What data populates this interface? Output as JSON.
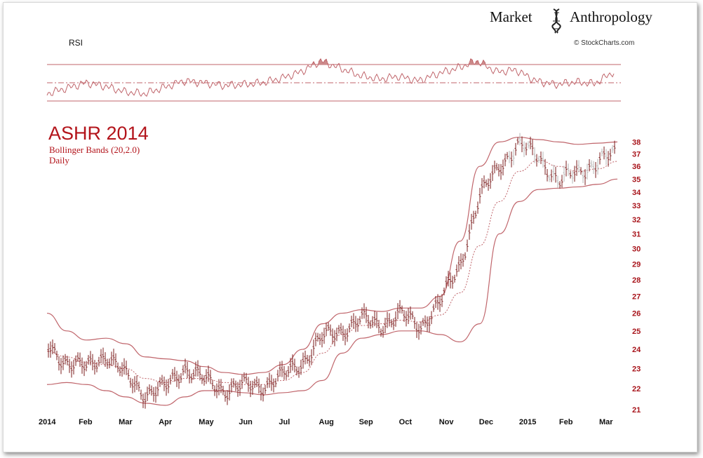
{
  "brand": {
    "left": "Market",
    "right": "Anthropology",
    "credit": "© StockCharts.com"
  },
  "rsi": {
    "label": "RSI"
  },
  "chart_data": {
    "type": "line",
    "title": "ASHR 2014",
    "subtitle": "Bollinger Bands (20,2.0)",
    "interval": "Daily",
    "y_scale": "log",
    "ylim": [
      21,
      38.5
    ],
    "y_ticks": [
      21,
      22,
      23,
      24,
      25,
      26,
      27,
      28,
      29,
      30,
      31,
      32,
      33,
      34,
      35,
      36,
      37,
      38
    ],
    "x_ticks": [
      "2014",
      "Feb",
      "Mar",
      "Apr",
      "May",
      "Jun",
      "Jul",
      "Aug",
      "Sep",
      "Oct",
      "Nov",
      "Dec",
      "2015",
      "Feb",
      "Mar"
    ],
    "x": [
      "2014",
      "Jan-mid",
      "Feb",
      "Feb-mid",
      "Mar",
      "Mar-mid",
      "Apr",
      "Apr-mid",
      "May",
      "May-mid",
      "Jun",
      "Jun-mid",
      "Jul",
      "Jul-mid",
      "Aug",
      "Aug-mid",
      "Sep",
      "Sep-mid",
      "Oct",
      "Oct-mid",
      "Nov",
      "Nov-mid",
      "Dec",
      "Dec-mid",
      "2015",
      "Jan-mid",
      "Feb",
      "Feb-mid",
      "Mar",
      "Mar-mid"
    ],
    "series": [
      {
        "values": [
          24.1,
          23.4,
          23.0,
          23.8,
          22.6,
          21.8,
          22.0,
          23.1,
          22.4,
          22.0,
          22.1,
          22.2,
          22.6,
          23.4,
          24.6,
          25.1,
          25.6,
          25.4,
          25.9,
          25.3,
          26.6,
          29.0,
          33.5,
          36.2,
          37.6,
          37.0,
          34.6,
          35.8,
          36.1,
          37.3
        ]
      },
      {
        "values": [
          23.9,
          23.6,
          23.3,
          23.2,
          23.0,
          22.5,
          22.3,
          22.5,
          22.5,
          22.3,
          22.2,
          22.2,
          22.4,
          22.8,
          23.8,
          24.8,
          25.3,
          25.4,
          25.6,
          25.5,
          25.9,
          27.2,
          30.2,
          33.3,
          35.6,
          36.5,
          36.0,
          35.6,
          35.8,
          36.4
        ]
      },
      {
        "values": [
          26.0,
          25.0,
          24.5,
          24.6,
          24.3,
          23.6,
          23.5,
          23.4,
          23.1,
          22.8,
          22.7,
          22.8,
          23.2,
          24.0,
          25.4,
          26.0,
          26.2,
          26.1,
          26.3,
          26.3,
          27.0,
          30.5,
          36.0,
          38.0,
          38.4,
          38.2,
          38.0,
          37.8,
          37.9,
          38.0
        ]
      },
      {
        "values": [
          22.2,
          22.3,
          22.2,
          21.9,
          21.6,
          21.3,
          21.2,
          21.6,
          21.9,
          21.9,
          21.8,
          21.7,
          21.8,
          21.9,
          22.4,
          23.8,
          24.6,
          24.8,
          25.0,
          25.0,
          24.8,
          24.4,
          25.4,
          31.0,
          33.3,
          34.2,
          34.3,
          34.4,
          34.6,
          35.0
        ]
      }
    ],
    "rsi_levels": [
      30,
      50,
      70
    ],
    "rsi_values": [
      38,
      44,
      50,
      46,
      40,
      38,
      45,
      52,
      50,
      47,
      48,
      50,
      55,
      62,
      74,
      66,
      58,
      54,
      57,
      52,
      60,
      66,
      74,
      62,
      64,
      52,
      48,
      51,
      49,
      62
    ]
  },
  "colors": {
    "accent": "#b3141b",
    "bands": "#c0656b",
    "bars": "#7b1c1c",
    "grey_bars": "#b5b5b5",
    "rsi_fill": "#cc8a8a"
  }
}
